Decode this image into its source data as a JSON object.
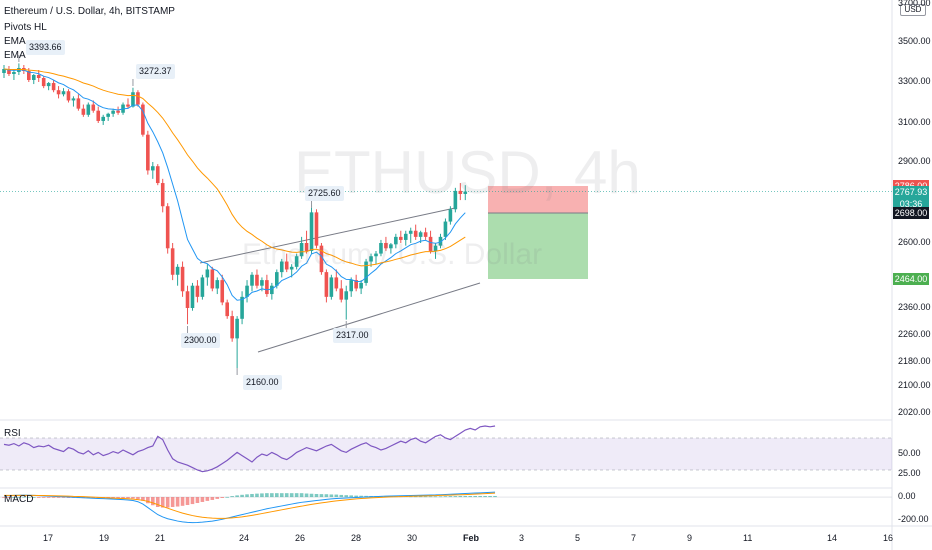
{
  "header": {
    "symbol_line": "Ethereum / U.S. Dollar, 4h, BITSTAMP",
    "indicators": [
      "Pivots HL",
      "EMA",
      "EMA"
    ]
  },
  "watermark": {
    "ticker": "ETHUSD, 4h",
    "name": "Ethereum / U.S. Dollar"
  },
  "currency_button": "USD",
  "colors": {
    "up": "#26a69a",
    "down": "#ef5350",
    "ema_fast": "#2196f3",
    "ema_slow": "#ff9800",
    "rsi": "#7e57c2",
    "macd": "#2196f3",
    "signal": "#ff9800",
    "stop_zone": "#f7a3a3",
    "target_zone": "#a3d9a5",
    "channel": "#787b86"
  },
  "chart_data": {
    "type": "candlestick",
    "price_axis": {
      "ticks": [
        "3700.00",
        "3500.00",
        "3300.00",
        "3100.00",
        "2900.00",
        "2600.00",
        "2360.00",
        "2260.00",
        "2180.00",
        "2100.00",
        "2020.00"
      ],
      "tick_values": [
        3700,
        3500,
        3300,
        3100,
        2900,
        2600,
        2360,
        2260,
        2180,
        2100,
        2020
      ]
    },
    "time_axis": {
      "labels": [
        "17",
        "19",
        "21",
        "24",
        "26",
        "28",
        "30",
        "Feb",
        "3",
        "5",
        "7",
        "9",
        "11",
        "14",
        "16"
      ]
    },
    "price_tags": [
      {
        "label": "2786.00",
        "value": 2786,
        "color": "#ef5350"
      },
      {
        "label": "2767.93",
        "sublabel": "03:36",
        "value": 2767.93,
        "color": "#26a69a"
      },
      {
        "label": "2698.00",
        "value": 2698,
        "color": "#131722"
      },
      {
        "label": "2464.00",
        "value": 2464,
        "color": "#4caf50"
      }
    ],
    "pivot_labels": [
      {
        "label": "3393.66",
        "type": "high"
      },
      {
        "label": "3272.37",
        "type": "high"
      },
      {
        "label": "2725.60",
        "type": "high"
      },
      {
        "label": "2300.00",
        "type": "low"
      },
      {
        "label": "2160.00",
        "type": "low"
      },
      {
        "label": "2317.00",
        "type": "low"
      }
    ],
    "position": {
      "stop": 2786,
      "entry": 2698,
      "target": 2464
    },
    "rsi": {
      "label": "RSI",
      "ticks": [
        "50.00",
        "25.00"
      ],
      "band": [
        30,
        70
      ],
      "values": [
        62,
        61,
        63,
        60,
        64,
        62,
        58,
        60,
        59,
        61,
        57,
        55,
        53,
        58,
        56,
        52,
        50,
        54,
        49,
        52,
        48,
        50,
        53,
        51,
        55,
        52,
        49,
        53,
        55,
        58,
        60,
        72,
        68,
        55,
        44,
        40,
        38,
        36,
        33,
        30,
        28,
        29,
        31,
        34,
        38,
        42,
        47,
        52,
        48,
        44,
        40,
        46,
        50,
        48,
        52,
        49,
        45,
        43,
        47,
        52,
        55,
        58,
        56,
        54,
        57,
        60,
        62,
        58,
        54,
        52,
        56,
        59,
        62,
        64,
        60,
        58,
        55,
        57,
        60,
        63,
        66,
        64,
        68,
        70,
        66,
        64,
        68,
        72,
        74,
        70,
        68,
        72,
        76,
        80,
        82,
        80,
        84,
        85,
        84,
        85
      ]
    },
    "macd": {
      "label": "MACD",
      "ticks": [
        "0.00",
        "-200.00"
      ],
      "macd_values": [
        10,
        12,
        14,
        15,
        16,
        15,
        14,
        12,
        10,
        8,
        6,
        4,
        2,
        0,
        -2,
        -4,
        -6,
        -8,
        -10,
        -12,
        -14,
        -16,
        -18,
        -20,
        -22,
        -25,
        -30,
        -40,
        -60,
        -90,
        -120,
        -150,
        -170,
        -185,
        -195,
        -205,
        -212,
        -216,
        -218,
        -217,
        -214,
        -210,
        -205,
        -198,
        -190,
        -180,
        -170,
        -160,
        -150,
        -140,
        -130,
        -120,
        -110,
        -100,
        -92,
        -84,
        -76,
        -68,
        -60,
        -52,
        -45,
        -40,
        -35,
        -30,
        -25,
        -20,
        -16,
        -12,
        -10,
        -8,
        -6,
        -4,
        -2,
        0,
        2,
        4,
        6,
        8,
        9,
        10,
        11,
        12,
        13,
        14,
        15,
        16,
        17,
        18,
        20,
        22,
        24,
        26,
        28,
        30,
        32,
        34,
        36,
        38,
        40,
        42
      ],
      "signal_values": [
        14,
        14,
        14,
        14,
        14,
        14,
        14,
        13,
        13,
        12,
        11,
        10,
        9,
        8,
        6,
        5,
        3,
        1,
        -1,
        -3,
        -5,
        -7,
        -9,
        -11,
        -13,
        -15,
        -18,
        -22,
        -28,
        -37,
        -50,
        -65,
        -80,
        -95,
        -110,
        -124,
        -137,
        -148,
        -158,
        -166,
        -172,
        -177,
        -180,
        -182,
        -182,
        -181,
        -178,
        -174,
        -169,
        -163,
        -156,
        -149,
        -141,
        -133,
        -125,
        -117,
        -109,
        -101,
        -93,
        -85,
        -78,
        -70,
        -63,
        -56,
        -50,
        -44,
        -38,
        -33,
        -28,
        -24,
        -20,
        -16,
        -13,
        -10,
        -7,
        -5,
        -3,
        -1,
        1,
        2,
        4,
        5,
        7,
        8,
        9,
        10,
        11,
        12,
        14,
        15,
        16,
        18,
        19,
        21,
        23,
        25,
        27,
        29,
        31,
        33
      ]
    },
    "candles": [
      [
        3345,
        3385,
        3320,
        3365
      ],
      [
        3365,
        3380,
        3330,
        3340
      ],
      [
        3340,
        3360,
        3310,
        3350
      ],
      [
        3350,
        3393,
        3335,
        3370
      ],
      [
        3370,
        3385,
        3340,
        3355
      ],
      [
        3355,
        3370,
        3300,
        3310
      ],
      [
        3310,
        3340,
        3290,
        3335
      ],
      [
        3335,
        3360,
        3300,
        3320
      ],
      [
        3320,
        3330,
        3270,
        3280
      ],
      [
        3280,
        3300,
        3260,
        3295
      ],
      [
        3295,
        3310,
        3250,
        3260
      ],
      [
        3260,
        3280,
        3220,
        3240
      ],
      [
        3240,
        3270,
        3230,
        3255
      ],
      [
        3255,
        3265,
        3200,
        3210
      ],
      [
        3210,
        3230,
        3180,
        3220
      ],
      [
        3220,
        3240,
        3160,
        3170
      ],
      [
        3170,
        3190,
        3130,
        3140
      ],
      [
        3140,
        3200,
        3130,
        3190
      ],
      [
        3190,
        3210,
        3150,
        3160
      ],
      [
        3160,
        3180,
        3100,
        3110
      ],
      [
        3110,
        3140,
        3090,
        3130
      ],
      [
        3130,
        3150,
        3110,
        3145
      ],
      [
        3145,
        3170,
        3130,
        3160
      ],
      [
        3160,
        3180,
        3140,
        3150
      ],
      [
        3150,
        3200,
        3140,
        3190
      ],
      [
        3190,
        3220,
        3170,
        3180
      ],
      [
        3180,
        3272,
        3175,
        3250
      ],
      [
        3250,
        3260,
        3180,
        3190
      ],
      [
        3190,
        3200,
        3030,
        3040
      ],
      [
        3040,
        3060,
        2840,
        2860
      ],
      [
        2860,
        2900,
        2820,
        2880
      ],
      [
        2880,
        2890,
        2790,
        2800
      ],
      [
        2800,
        2820,
        2700,
        2720
      ],
      [
        2720,
        2730,
        2560,
        2580
      ],
      [
        2580,
        2600,
        2460,
        2480
      ],
      [
        2480,
        2520,
        2440,
        2510
      ],
      [
        2510,
        2530,
        2400,
        2420
      ],
      [
        2420,
        2440,
        2300,
        2360
      ],
      [
        2360,
        2450,
        2350,
        2440
      ],
      [
        2440,
        2460,
        2380,
        2400
      ],
      [
        2400,
        2480,
        2390,
        2470
      ],
      [
        2470,
        2520,
        2440,
        2500
      ],
      [
        2500,
        2510,
        2420,
        2430
      ],
      [
        2430,
        2470,
        2410,
        2460
      ],
      [
        2460,
        2480,
        2370,
        2380
      ],
      [
        2380,
        2390,
        2320,
        2330
      ],
      [
        2330,
        2350,
        2240,
        2250
      ],
      [
        2250,
        2330,
        2160,
        2320
      ],
      [
        2320,
        2420,
        2300,
        2400
      ],
      [
        2400,
        2460,
        2380,
        2440
      ],
      [
        2440,
        2490,
        2420,
        2480
      ],
      [
        2480,
        2500,
        2430,
        2440
      ],
      [
        2440,
        2470,
        2420,
        2460
      ],
      [
        2460,
        2480,
        2400,
        2410
      ],
      [
        2410,
        2450,
        2390,
        2440
      ],
      [
        2440,
        2500,
        2430,
        2490
      ],
      [
        2490,
        2540,
        2470,
        2530
      ],
      [
        2530,
        2560,
        2490,
        2500
      ],
      [
        2500,
        2520,
        2470,
        2510
      ],
      [
        2510,
        2560,
        2500,
        2550
      ],
      [
        2550,
        2620,
        2540,
        2600
      ],
      [
        2600,
        2640,
        2560,
        2570
      ],
      [
        2570,
        2725,
        2560,
        2700
      ],
      [
        2700,
        2710,
        2580,
        2590
      ],
      [
        2590,
        2600,
        2480,
        2490
      ],
      [
        2490,
        2500,
        2380,
        2400
      ],
      [
        2400,
        2480,
        2390,
        2470
      ],
      [
        2470,
        2500,
        2420,
        2430
      ],
      [
        2430,
        2460,
        2380,
        2390
      ],
      [
        2390,
        2440,
        2317,
        2420
      ],
      [
        2420,
        2470,
        2400,
        2460
      ],
      [
        2460,
        2480,
        2420,
        2430
      ],
      [
        2430,
        2460,
        2410,
        2450
      ],
      [
        2450,
        2540,
        2440,
        2530
      ],
      [
        2530,
        2560,
        2510,
        2550
      ],
      [
        2550,
        2570,
        2520,
        2560
      ],
      [
        2560,
        2610,
        2550,
        2600
      ],
      [
        2600,
        2620,
        2570,
        2580
      ],
      [
        2580,
        2600,
        2560,
        2595
      ],
      [
        2595,
        2630,
        2580,
        2620
      ],
      [
        2620,
        2640,
        2600,
        2610
      ],
      [
        2610,
        2640,
        2590,
        2630
      ],
      [
        2630,
        2650,
        2600,
        2640
      ],
      [
        2640,
        2660,
        2610,
        2620
      ],
      [
        2620,
        2640,
        2600,
        2635
      ],
      [
        2635,
        2650,
        2610,
        2620
      ],
      [
        2620,
        2640,
        2560,
        2570
      ],
      [
        2570,
        2600,
        2540,
        2590
      ],
      [
        2590,
        2630,
        2580,
        2620
      ],
      [
        2620,
        2680,
        2610,
        2670
      ],
      [
        2670,
        2720,
        2660,
        2710
      ],
      [
        2710,
        2780,
        2700,
        2770
      ],
      [
        2770,
        2800,
        2740,
        2760
      ],
      [
        2760,
        2790,
        2740,
        2768
      ]
    ]
  }
}
